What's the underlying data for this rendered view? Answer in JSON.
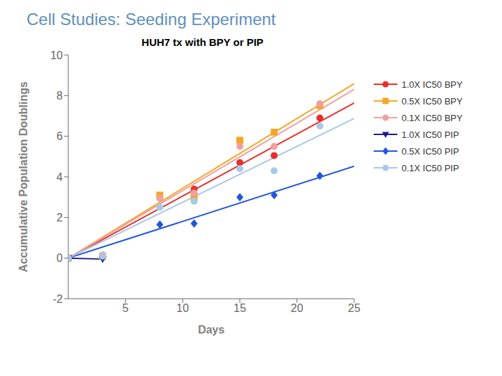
{
  "chart_data": {
    "type": "scatter",
    "title": "Cell Studies: Seeding Experiment",
    "subtitle": "HUH7 tx with BPY or PIP",
    "x_label": "Days",
    "y_label": "Accumulative Population Doublings",
    "xlim": [
      0,
      25
    ],
    "ylim": [
      -2,
      10
    ],
    "xticks": [
      5,
      10,
      15,
      20,
      25
    ],
    "yticks": [
      -2,
      0,
      2,
      4,
      6,
      8,
      10
    ],
    "grid": false,
    "legend": "right",
    "series": [
      {
        "name": "1.0X IC50 BPY",
        "color": "#e8302a",
        "marker": "circle",
        "x": [
          0,
          3,
          8,
          11,
          15,
          18,
          22
        ],
        "values": [
          0,
          0.05,
          3.0,
          3.4,
          4.7,
          5.05,
          6.9
        ],
        "line_x": [
          0,
          25
        ],
        "line_values": [
          0,
          7.6355
        ]
      },
      {
        "name": "0.5X IC50 BPY",
        "color": "#f5a623",
        "marker": "square",
        "x": [
          0,
          3,
          8,
          11,
          15,
          18,
          22
        ],
        "values": [
          0,
          0.1,
          3.1,
          3.0,
          5.8,
          6.2,
          7.5
        ],
        "line_x": [
          0,
          25
        ],
        "line_values": [
          0,
          8.5921
        ]
      },
      {
        "name": "0.1X IC50 BPY",
        "color": "#f0a0a0",
        "marker": "circle",
        "x": [
          0,
          3,
          8,
          11,
          15,
          18,
          22
        ],
        "values": [
          0,
          0.15,
          2.95,
          3.2,
          5.5,
          5.5,
          7.6
        ],
        "line_x": [
          0,
          25
        ],
        "line_values": [
          0,
          8.3119
        ]
      },
      {
        "name": "1.0X IC50 PIP",
        "color": "#1a1a8c",
        "marker": "triangle_down",
        "x": [
          0,
          3
        ],
        "values": [
          0,
          -0.05
        ],
        "line_x": [
          0,
          3
        ],
        "line_values": [
          0,
          -0.05
        ]
      },
      {
        "name": "0.5X IC50 PIP",
        "color": "#2255dd",
        "marker": "diamond",
        "x": [
          0,
          3,
          8,
          11,
          15,
          18,
          22
        ],
        "values": [
          0,
          0.05,
          1.65,
          1.7,
          3.0,
          3.1,
          4.05
        ],
        "line_x": [
          0,
          25
        ],
        "line_values": [
          0,
          4.5222
        ]
      },
      {
        "name": "0.1X IC50 PIP",
        "color": "#a8c8e8",
        "marker": "circle",
        "x": [
          0,
          3,
          8,
          11,
          15,
          18,
          22
        ],
        "values": [
          0,
          0.1,
          2.5,
          2.8,
          4.4,
          4.3,
          6.5
        ],
        "line_x": [
          0,
          25
        ],
        "line_values": [
          0,
          6.8765
        ]
      }
    ]
  }
}
